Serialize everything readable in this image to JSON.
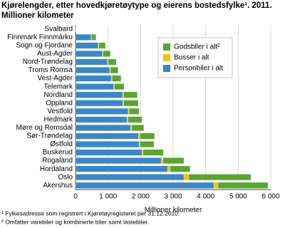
{
  "chart_data": {
    "type": "stacked-barh",
    "title": "Kjørelengder, etter hovedkjøretøytype og eierens bostedsfylke¹. 2011.",
    "subtitle": "Millioner kilometer",
    "x_label": "Millioner kilometer",
    "footnotes": [
      "¹ Fylkesadresse som registrert i Kjøretøyregisteret per 31.12.2010.",
      "² Omfatter varebiler og kombinerte biler samt lastebiler."
    ],
    "categories": [
      "Svalbard",
      "Finnmark Finnmárku",
      "Sogn og Fjordane",
      "Aust-Agder",
      "Nord-Trøndelag",
      "Troms Romsa",
      "Vest-Agder",
      "Telemark",
      "Nordland",
      "Oppland",
      "Vestfold",
      "Hedmark",
      "Møre og Romsdal",
      "Sør-Trøndelag",
      "Østfold",
      "Buskerud",
      "Rogaland",
      "Hordaland",
      "Oslo",
      "Akershus"
    ],
    "series": [
      {
        "name": "Godsbiler i alt²",
        "color": "#5aa532",
        "values": [
          2,
          140,
          200,
          225,
          245,
          235,
          280,
          290,
          420,
          450,
          305,
          430,
          375,
          450,
          430,
          625,
          640,
          610,
          1910,
          1540
        ]
      },
      {
        "name": "Busser i alt",
        "color": "#f4c300",
        "values": [
          0,
          10,
          20,
          15,
          20,
          25,
          25,
          20,
          35,
          30,
          25,
          30,
          35,
          50,
          30,
          35,
          60,
          80,
          150,
          130
        ]
      },
      {
        "name": "Personbiler i alt",
        "color": "#3a87c6",
        "values": [
          5,
          480,
          700,
          830,
          985,
          1050,
          1095,
          1180,
          1445,
          1450,
          1620,
          1580,
          1690,
          1930,
          1950,
          2040,
          2630,
          2830,
          3330,
          4250
        ]
      }
    ],
    "xlim": [
      0,
      6000
    ],
    "xticks": [
      0,
      {
        "value": 1000,
        "label": "1 000"
      },
      {
        "value": 2000,
        "label": "2 000"
      },
      {
        "value": 3000,
        "label": "3 000"
      },
      {
        "value": 4000,
        "label": "4 000"
      },
      {
        "value": 5000,
        "label": "5 000"
      },
      {
        "value": 6000,
        "label": "6 000"
      }
    ],
    "grid": true
  }
}
